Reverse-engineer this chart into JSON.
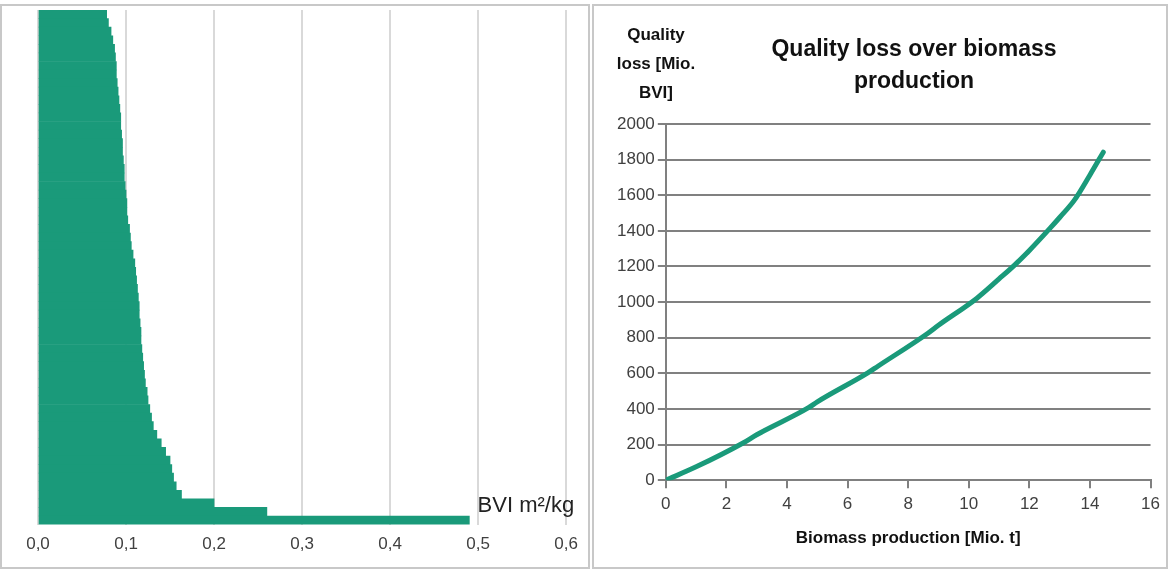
{
  "chart_data": [
    {
      "type": "bar",
      "orientation": "horizontal",
      "xlabel": "BVI m²/kg",
      "categories": [
        null,
        null,
        null,
        null,
        null,
        null,
        null,
        null,
        null,
        null,
        null,
        null,
        null,
        null,
        null,
        null,
        null,
        null,
        null,
        null,
        null,
        null,
        null,
        null,
        null,
        null,
        null,
        null,
        null,
        null,
        null,
        null,
        null,
        null,
        null,
        null,
        null,
        null,
        null,
        null,
        null,
        null,
        null,
        null,
        null,
        null,
        null,
        null,
        null,
        null,
        null,
        null,
        null,
        null,
        null,
        null,
        null,
        null,
        null,
        null
      ],
      "values": [
        0.078,
        0.08,
        0.083,
        0.085,
        0.087,
        0.088,
        0.089,
        0.089,
        0.09,
        0.091,
        0.092,
        0.093,
        0.094,
        0.094,
        0.095,
        0.096,
        0.096,
        0.097,
        0.098,
        0.098,
        0.099,
        0.1,
        0.101,
        0.101,
        0.102,
        0.104,
        0.105,
        0.106,
        0.108,
        0.11,
        0.111,
        0.112,
        0.113,
        0.114,
        0.115,
        0.115,
        0.116,
        0.117,
        0.117,
        0.118,
        0.119,
        0.12,
        0.121,
        0.122,
        0.124,
        0.125,
        0.127,
        0.129,
        0.131,
        0.135,
        0.14,
        0.145,
        0.15,
        0.152,
        0.154,
        0.157,
        0.163,
        0.2,
        0.26,
        0.49
      ],
      "color": "#1a9a7a",
      "xlim": [
        0,
        0.6
      ],
      "xticks": [
        {
          "value": 0,
          "label": "0,0"
        },
        {
          "value": 0.1,
          "label": "0,1"
        },
        {
          "value": 0.2,
          "label": "0,2"
        },
        {
          "value": 0.3,
          "label": "0,3"
        },
        {
          "value": 0.4,
          "label": "0,4"
        },
        {
          "value": 0.5,
          "label": "0,5"
        },
        {
          "value": 0.6,
          "label": "0,6"
        }
      ],
      "grid": "x",
      "tick_labels": "x"
    },
    {
      "type": "line",
      "title": "Quality loss over biomass production",
      "xlabel": "Biomass production [Mio. t]",
      "ylabel": "Quality loss [Mio. BVI]",
      "x": [
        0,
        1,
        2.55,
        3,
        4.71,
        5,
        6.68,
        7,
        8.64,
        9,
        10.27,
        11,
        11.52,
        12,
        12.7,
        13,
        13.48,
        14,
        14.44
      ],
      "values": [
        0,
        75,
        209,
        255,
        407,
        440,
        604,
        640,
        824,
        870,
        1022,
        1130,
        1209,
        1290,
        1418,
        1475,
        1571,
        1714,
        1842
      ],
      "color": "#1a9a7a",
      "xlim": [
        0,
        16
      ],
      "xticks": [
        0,
        2,
        4,
        6,
        8,
        10,
        12,
        14,
        16
      ],
      "ylim": [
        0,
        2000
      ],
      "yticks": [
        0,
        200,
        400,
        600,
        800,
        1000,
        1200,
        1400,
        1600,
        1800,
        2000
      ],
      "grid": "y",
      "marker": "none"
    }
  ]
}
